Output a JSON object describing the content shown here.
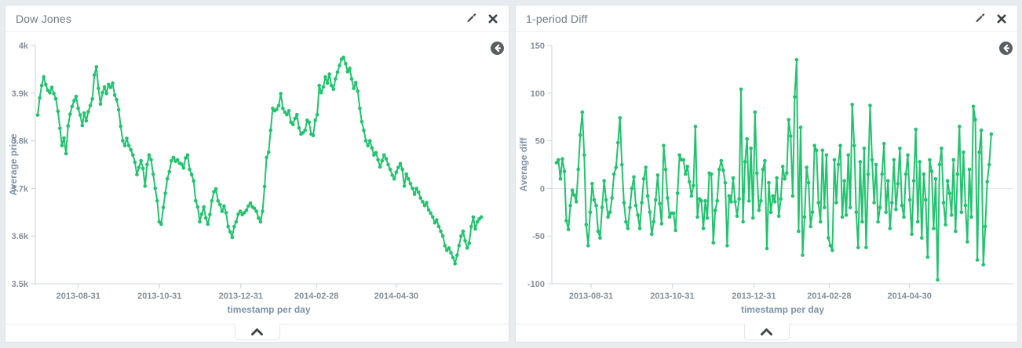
{
  "page": {
    "background": "#e8ecee",
    "panel_border": "#dce2e6"
  },
  "panels": [
    {
      "title": "Dow Jones",
      "icons": {
        "edit": "pencil-icon",
        "close": "close-icon",
        "deselect": "back-circle-icon",
        "collapse": "chevron-up-icon"
      }
    },
    {
      "title": "1-period Diff",
      "icons": {
        "edit": "pencil-icon",
        "close": "close-icon",
        "deselect": "back-circle-icon",
        "collapse": "chevron-up-icon"
      }
    }
  ],
  "chart_data": [
    {
      "type": "line",
      "title": "Dow Jones",
      "ylabel": "Average price",
      "xlabel": "timestamp per day",
      "ylim": [
        3500,
        4000
      ],
      "y_ticks": [
        {
          "v": 4000,
          "label": "4k"
        },
        {
          "v": 3900,
          "label": "3.9k"
        },
        {
          "v": 3800,
          "label": "3.8k"
        },
        {
          "v": 3700,
          "label": "3.7k"
        },
        {
          "v": 3600,
          "label": "3.6k"
        },
        {
          "v": 3500,
          "label": "3.5k"
        }
      ],
      "x_ticks": [
        "2013-08-31",
        "2013-10-31",
        "2013-12-31",
        "2014-02-28",
        "2014-04-30"
      ],
      "x_tick_pos": [
        0.092,
        0.266,
        0.44,
        0.602,
        0.773
      ],
      "x_span": [
        0.005,
        0.955
      ],
      "zero_line": false,
      "grid": false,
      "legend": "none",
      "color": "#22c36e",
      "values": [
        3854,
        3890,
        3916,
        3934,
        3918,
        3906,
        3901,
        3912,
        3899,
        3888,
        3862,
        3826,
        3790,
        3806,
        3773,
        3831,
        3856,
        3872,
        3884,
        3893,
        3868,
        3854,
        3832,
        3858,
        3842,
        3861,
        3874,
        3888,
        3938,
        3955,
        3910,
        3877,
        3901,
        3913,
        3899,
        3918,
        3912,
        3921,
        3896,
        3886,
        3865,
        3830,
        3800,
        3790,
        3805,
        3790,
        3781,
        3770,
        3755,
        3729,
        3744,
        3758,
        3742,
        3705,
        3750,
        3770,
        3760,
        3730,
        3700,
        3674,
        3630,
        3625,
        3660,
        3690,
        3720,
        3735,
        3758,
        3765,
        3757,
        3760,
        3753,
        3751,
        3743,
        3764,
        3770,
        3740,
        3729,
        3716,
        3674,
        3661,
        3630,
        3646,
        3661,
        3638,
        3625,
        3645,
        3674,
        3693,
        3699,
        3674,
        3666,
        3652,
        3663,
        3649,
        3620,
        3609,
        3597,
        3620,
        3630,
        3646,
        3652,
        3645,
        3649,
        3654,
        3663,
        3669,
        3661,
        3658,
        3652,
        3638,
        3630,
        3652,
        3704,
        3765,
        3776,
        3822,
        3868,
        3863,
        3866,
        3874,
        3899,
        3868,
        3860,
        3855,
        3863,
        3839,
        3834,
        3847,
        3855,
        3827,
        3814,
        3817,
        3822,
        3843,
        3839,
        3814,
        3811,
        3843,
        3855,
        3916,
        3901,
        3913,
        3934,
        3921,
        3940,
        3916,
        3908,
        3930,
        3944,
        3958,
        3971,
        3975,
        3962,
        3945,
        3952,
        3930,
        3910,
        3922,
        3904,
        3868,
        3840,
        3822,
        3800,
        3790,
        3800,
        3785,
        3770,
        3775,
        3760,
        3745,
        3758,
        3770,
        3762,
        3750,
        3740,
        3728,
        3720,
        3734,
        3744,
        3752,
        3740,
        3705,
        3730,
        3720,
        3710,
        3700,
        3688,
        3700,
        3692,
        3680,
        3672,
        3664,
        3670,
        3655,
        3648,
        3640,
        3628,
        3634,
        3620,
        3610,
        3600,
        3580,
        3570,
        3575,
        3565,
        3555,
        3542,
        3560,
        3580,
        3600,
        3610,
        3590,
        3575,
        3585,
        3620,
        3640,
        3615,
        3630,
        3636,
        3640
      ]
    },
    {
      "type": "line",
      "title": "1-period Diff",
      "ylabel": "Average diff",
      "xlabel": "timestamp per day",
      "ylim": [
        -100,
        150
      ],
      "y_ticks": [
        {
          "v": 150,
          "label": "150"
        },
        {
          "v": 100,
          "label": "100"
        },
        {
          "v": 50,
          "label": "50"
        },
        {
          "v": 0,
          "label": "0"
        },
        {
          "v": -50,
          "label": "-50"
        },
        {
          "v": -100,
          "label": "-100"
        }
      ],
      "x_ticks": [
        "2013-08-31",
        "2013-10-31",
        "2013-12-31",
        "2014-02-28",
        "2014-04-30"
      ],
      "x_tick_pos": [
        0.085,
        0.261,
        0.438,
        0.601,
        0.775
      ],
      "x_span": [
        0.01,
        0.952
      ],
      "zero_line": true,
      "grid": false,
      "legend": "none",
      "color": "#22c36e",
      "values": [
        27,
        30,
        10,
        31,
        18,
        -34,
        -43,
        -18,
        -2,
        -7,
        -14,
        20,
        56,
        80,
        35,
        -38,
        -60,
        -25,
        5,
        -12,
        -18,
        -45,
        -52,
        -20,
        8,
        -12,
        -30,
        -25,
        -10,
        15,
        22,
        48,
        74,
        25,
        -15,
        -35,
        -42,
        -20,
        0,
        12,
        -18,
        -28,
        -42,
        -15,
        10,
        22,
        -8,
        -25,
        -48,
        -35,
        -12,
        14,
        -16,
        -37,
        45,
        20,
        -10,
        -30,
        -26,
        -26,
        -44,
        -5,
        35,
        30,
        30,
        15,
        23,
        7,
        -8,
        3,
        65,
        -30,
        -11,
        -13,
        -42,
        -13,
        -31,
        16,
        15,
        -57,
        -23,
        -13,
        20,
        29,
        19,
        6,
        -60,
        -8,
        -14,
        11,
        -14,
        -29,
        -11,
        104,
        -35,
        28,
        52,
        -13,
        42,
        -31,
        80,
        16,
        -23,
        -13,
        20,
        29,
        -63,
        6,
        -25,
        -8,
        -14,
        11,
        -29,
        -11,
        23,
        10,
        16,
        72,
        55,
        -8,
        96,
        135,
        -45,
        64,
        -70,
        -30,
        22,
        6,
        -40,
        -25,
        45,
        40,
        -15,
        -35,
        40,
        -20,
        35,
        -52,
        -60,
        -65,
        30,
        -15,
        25,
        45,
        -30,
        8,
        -28,
        35,
        -20,
        88,
        45,
        -25,
        -62,
        28,
        -35,
        42,
        -62,
        15,
        87,
        30,
        -15,
        25,
        -35,
        -20,
        15,
        47,
        -25,
        8,
        -42,
        -15,
        30,
        -22,
        5,
        42,
        -18,
        -30,
        15,
        35,
        -12,
        -48,
        8,
        62,
        -35,
        28,
        -52,
        15,
        -12,
        -72,
        30,
        18,
        -42,
        10,
        -96,
        25,
        42,
        -15,
        -38,
        8,
        -5,
        -28,
        30,
        -45,
        15,
        65,
        -25,
        38,
        -18,
        -56,
        20,
        -30,
        86,
        72,
        -75,
        38,
        61,
        -80,
        -40,
        7,
        25,
        57
      ]
    }
  ]
}
